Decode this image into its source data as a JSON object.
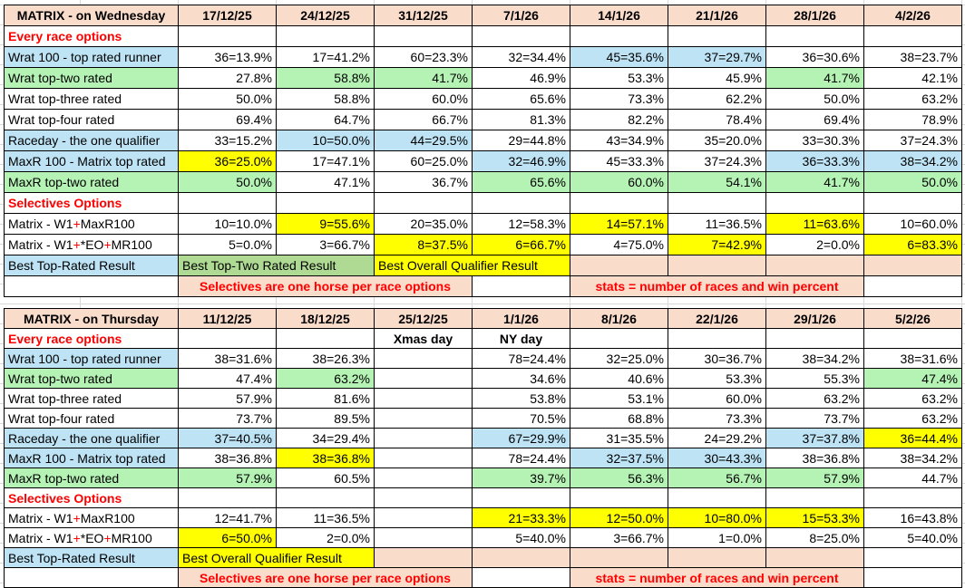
{
  "colors": {
    "peach": "#FADCCB",
    "blue": "#BDE3F5",
    "green": "#B5F3B5",
    "band_green": "#AEDA93",
    "yellow": "#FFFF00",
    "red": "#FF0000",
    "border": "#000000",
    "gridline": "#D9D9D9",
    "text": "#000000"
  },
  "tables": [
    {
      "id": "wednesday",
      "title": "MATRIX - on Wednesday",
      "dates": [
        "17/12/25",
        "24/12/25",
        "31/12/25",
        "7/1/26",
        "14/1/26",
        "21/1/26",
        "28/1/26",
        "4/2/26"
      ],
      "rows": [
        {
          "kind": "section",
          "label": "Every race options",
          "notes": [
            "",
            "",
            "",
            "",
            "",
            "",
            "",
            ""
          ]
        },
        {
          "kind": "data",
          "label": "Wrat 100 - top rated runner",
          "label_bg": "blue",
          "cells": [
            [
              "36=13.9%",
              ""
            ],
            [
              "17=41.2%",
              ""
            ],
            [
              "60=23.3%",
              ""
            ],
            [
              "32=34.4%",
              ""
            ],
            [
              "45=35.6%",
              "blue"
            ],
            [
              "37=29.7%",
              "blue"
            ],
            [
              "36=30.6%",
              ""
            ],
            [
              "38=23.7%",
              ""
            ]
          ]
        },
        {
          "kind": "data",
          "label": "Wrat top-two rated",
          "label_bg": "green",
          "cells": [
            [
              "27.8%",
              ""
            ],
            [
              "58.8%",
              "green"
            ],
            [
              "41.7%",
              "green"
            ],
            [
              "46.9%",
              ""
            ],
            [
              "53.3%",
              ""
            ],
            [
              "45.9%",
              ""
            ],
            [
              "41.7%",
              "green"
            ],
            [
              "42.1%",
              ""
            ]
          ]
        },
        {
          "kind": "data",
          "label": "Wrat top-three rated",
          "label_bg": "",
          "cells": [
            [
              "50.0%",
              ""
            ],
            [
              "58.8%",
              ""
            ],
            [
              "60.0%",
              ""
            ],
            [
              "65.6%",
              ""
            ],
            [
              "73.3%",
              ""
            ],
            [
              "62.2%",
              ""
            ],
            [
              "50.0%",
              ""
            ],
            [
              "63.2%",
              ""
            ]
          ]
        },
        {
          "kind": "data",
          "label": "Wrat top-four rated",
          "label_bg": "",
          "cells": [
            [
              "69.4%",
              ""
            ],
            [
              "64.7%",
              ""
            ],
            [
              "66.7%",
              ""
            ],
            [
              "81.3%",
              ""
            ],
            [
              "82.2%",
              ""
            ],
            [
              "78.4%",
              ""
            ],
            [
              "69.4%",
              ""
            ],
            [
              "78.9%",
              ""
            ]
          ]
        },
        {
          "kind": "data",
          "label": "Raceday - the one qualifier",
          "label_bg": "blue",
          "cells": [
            [
              "33=15.2%",
              ""
            ],
            [
              "10=50.0%",
              "blue"
            ],
            [
              "44=29.5%",
              "blue"
            ],
            [
              "29=44.8%",
              ""
            ],
            [
              "43=34.9%",
              ""
            ],
            [
              "35=20.0%",
              ""
            ],
            [
              "33=30.3%",
              ""
            ],
            [
              "37=24.3%",
              ""
            ]
          ]
        },
        {
          "kind": "data",
          "label": "MaxR 100 - Matrix top rated",
          "label_bg": "blue",
          "cells": [
            [
              "36=25.0%",
              "yellow"
            ],
            [
              "17=47.1%",
              ""
            ],
            [
              "60=25.0%",
              ""
            ],
            [
              "32=46.9%",
              "blue"
            ],
            [
              "45=33.3%",
              ""
            ],
            [
              "37=24.3%",
              ""
            ],
            [
              "36=33.3%",
              "blue"
            ],
            [
              "38=34.2%",
              "blue"
            ]
          ]
        },
        {
          "kind": "data",
          "label": "MaxR top-two rated",
          "label_bg": "green",
          "cells": [
            [
              "50.0%",
              "green"
            ],
            [
              "47.1%",
              ""
            ],
            [
              "36.7%",
              ""
            ],
            [
              "65.6%",
              "green"
            ],
            [
              "60.0%",
              "green"
            ],
            [
              "54.1%",
              "green"
            ],
            [
              "41.7%",
              "green"
            ],
            [
              "50.0%",
              "green"
            ]
          ]
        },
        {
          "kind": "section",
          "label": "Selectives Options",
          "notes": [
            "",
            "",
            "",
            "",
            "",
            "",
            "",
            ""
          ]
        },
        {
          "kind": "data",
          "label_parts": [
            [
              "Matrix - W1",
              ""
            ],
            [
              "+",
              "red"
            ],
            [
              "MaxR100",
              ""
            ]
          ],
          "label_bg": "",
          "cells": [
            [
              "10=10.0%",
              ""
            ],
            [
              "9=55.6%",
              "yellow"
            ],
            [
              "20=35.0%",
              ""
            ],
            [
              "12=58.3%",
              ""
            ],
            [
              "14=57.1%",
              "yellow"
            ],
            [
              "11=36.5%",
              ""
            ],
            [
              "11=63.6%",
              "yellow"
            ],
            [
              "10=60.0%",
              ""
            ]
          ]
        },
        {
          "kind": "data",
          "label_parts": [
            [
              "Matrix - W1",
              ""
            ],
            [
              "+",
              "red"
            ],
            [
              "*EO",
              ""
            ],
            [
              "+",
              "red"
            ],
            [
              "MR100",
              ""
            ]
          ],
          "label_bg": "",
          "cells": [
            [
              "5=0.0%",
              ""
            ],
            [
              "3=66.7%",
              ""
            ],
            [
              "8=37.5%",
              "yellow"
            ],
            [
              "6=66.7%",
              "yellow"
            ],
            [
              "4=75.0%",
              ""
            ],
            [
              "7=42.9%",
              "yellow"
            ],
            [
              "2=0.0%",
              ""
            ],
            [
              "6=83.3%",
              "yellow"
            ]
          ]
        },
        {
          "kind": "best",
          "label": "Best Top-Rated Result",
          "spans": [
            {
              "text": "Best Top-Two Rated Result",
              "bg": "band_green",
              "cols": 2
            },
            {
              "text": "Best Overall Qualifier Result",
              "bg": "yellow",
              "cols": 2
            },
            {
              "text": "",
              "bg": "peach",
              "cols": 1
            },
            {
              "text": "",
              "bg": "peach",
              "cols": 1
            },
            {
              "text": "",
              "bg": "peach",
              "cols": 1
            },
            {
              "text": "",
              "bg": "peach",
              "cols": 1
            }
          ]
        },
        {
          "kind": "footer",
          "bands": [
            {
              "text": "",
              "cols": 1,
              "bg": "none"
            },
            {
              "text": "Selectives are one horse per race options",
              "cols": 3,
              "bg": "peach"
            },
            {
              "text": "",
              "cols": 1,
              "bg": "gap"
            },
            {
              "text": "stats = number of races and win percent",
              "cols": 3,
              "bg": "peach"
            },
            {
              "text": "",
              "cols": 1,
              "bg": "none"
            }
          ]
        }
      ]
    },
    {
      "id": "thursday",
      "title": "MATRIX - on Thursday",
      "dates": [
        "11/12/25",
        "18/12/25",
        "25/12/25",
        "1/1/26",
        "8/1/26",
        "22/1/26",
        "29/1/26",
        "5/2/26"
      ],
      "rows": [
        {
          "kind": "section",
          "label": "Every race options",
          "notes": [
            "",
            "",
            "Xmas day",
            "NY day",
            "",
            "",
            "",
            ""
          ]
        },
        {
          "kind": "data",
          "label": "Wrat 100 - top rated runner",
          "label_bg": "blue",
          "cells": [
            [
              "38=31.6%",
              ""
            ],
            [
              "38=26.3%",
              ""
            ],
            [
              "",
              ""
            ],
            [
              "78=24.4%",
              ""
            ],
            [
              "32=25.0%",
              ""
            ],
            [
              "30=36.7%",
              ""
            ],
            [
              "38=34.2%",
              ""
            ],
            [
              "38=31.6%",
              ""
            ]
          ]
        },
        {
          "kind": "data",
          "label": "Wrat top-two rated",
          "label_bg": "green",
          "cells": [
            [
              "47.4%",
              ""
            ],
            [
              "63.2%",
              "green"
            ],
            [
              "",
              ""
            ],
            [
              "34.6%",
              ""
            ],
            [
              "40.6%",
              ""
            ],
            [
              "53.3%",
              ""
            ],
            [
              "55.3%",
              ""
            ],
            [
              "47.4%",
              "green"
            ]
          ]
        },
        {
          "kind": "data",
          "label": "Wrat top-three rated",
          "label_bg": "",
          "cells": [
            [
              "57.9%",
              ""
            ],
            [
              "81.6%",
              ""
            ],
            [
              "",
              ""
            ],
            [
              "53.8%",
              ""
            ],
            [
              "53.1%",
              ""
            ],
            [
              "60.0%",
              ""
            ],
            [
              "63.2%",
              ""
            ],
            [
              "63.2%",
              ""
            ]
          ]
        },
        {
          "kind": "data",
          "label": "Wrat top-four rated",
          "label_bg": "",
          "cells": [
            [
              "73.7%",
              ""
            ],
            [
              "89.5%",
              ""
            ],
            [
              "",
              ""
            ],
            [
              "70.5%",
              ""
            ],
            [
              "68.8%",
              ""
            ],
            [
              "73.3%",
              ""
            ],
            [
              "73.7%",
              ""
            ],
            [
              "63.2%",
              ""
            ]
          ]
        },
        {
          "kind": "data",
          "label": "Raceday - the one qualifier",
          "label_bg": "blue",
          "cells": [
            [
              "37=40.5%",
              "blue"
            ],
            [
              "34=29.4%",
              ""
            ],
            [
              "",
              ""
            ],
            [
              "67=29.9%",
              "blue"
            ],
            [
              "31=35.5%",
              ""
            ],
            [
              "24=29.2%",
              ""
            ],
            [
              "37=37.8%",
              "blue"
            ],
            [
              "36=44.4%",
              "yellow"
            ]
          ]
        },
        {
          "kind": "data",
          "label": "MaxR 100 - Matrix top rated",
          "label_bg": "blue",
          "cells": [
            [
              "38=36.8%",
              ""
            ],
            [
              "38=36.8%",
              "yellow"
            ],
            [
              "",
              ""
            ],
            [
              "78=24.4%",
              ""
            ],
            [
              "32=37.5%",
              "blue"
            ],
            [
              "30=43.3%",
              "blue"
            ],
            [
              "38=36.8%",
              ""
            ],
            [
              "38=34.2%",
              ""
            ]
          ]
        },
        {
          "kind": "data",
          "label": "MaxR top-two rated",
          "label_bg": "green",
          "cells": [
            [
              "57.9%",
              "green"
            ],
            [
              "60.5%",
              ""
            ],
            [
              "",
              ""
            ],
            [
              "39.7%",
              "green"
            ],
            [
              "56.3%",
              "green"
            ],
            [
              "56.7%",
              "green"
            ],
            [
              "57.9%",
              "green"
            ],
            [
              "44.7%",
              ""
            ]
          ]
        },
        {
          "kind": "section",
          "label": "Selectives Options",
          "notes": [
            "",
            "",
            "",
            "",
            "",
            "",
            "",
            ""
          ]
        },
        {
          "kind": "data",
          "label_parts": [
            [
              "Matrix - W1",
              ""
            ],
            [
              "+",
              "red"
            ],
            [
              "MaxR100",
              ""
            ]
          ],
          "label_bg": "",
          "cells": [
            [
              "12=41.7%",
              ""
            ],
            [
              "11=36.5%",
              ""
            ],
            [
              "",
              ""
            ],
            [
              "21=33.3%",
              "yellow"
            ],
            [
              "12=50.0%",
              "yellow"
            ],
            [
              "10=80.0%",
              "yellow"
            ],
            [
              "15=53.3%",
              "yellow"
            ],
            [
              "16=43.8%",
              ""
            ]
          ]
        },
        {
          "kind": "data",
          "label_parts": [
            [
              "Matrix - W1",
              ""
            ],
            [
              "+",
              "red"
            ],
            [
              "*EO",
              ""
            ],
            [
              "+",
              "red"
            ],
            [
              "MR100",
              ""
            ]
          ],
          "label_bg": "",
          "cells": [
            [
              "6=50.0%",
              "yellow"
            ],
            [
              "2=0.0%",
              ""
            ],
            [
              "",
              ""
            ],
            [
              "5=40.0%",
              ""
            ],
            [
              "3=66.7%",
              ""
            ],
            [
              "1=0.0%",
              ""
            ],
            [
              "8=25.0%",
              ""
            ],
            [
              "5=40.0%",
              ""
            ]
          ]
        },
        {
          "kind": "best",
          "label": "Best Top-Rated Result",
          "spans": [
            {
              "text": "Best Overall Qualifier Result",
              "bg": "yellow",
              "cols": 2
            },
            {
              "text": "",
              "bg": "peach",
              "cols": 1
            },
            {
              "text": "",
              "bg": "peach",
              "cols": 1
            },
            {
              "text": "",
              "bg": "peach",
              "cols": 1
            },
            {
              "text": "",
              "bg": "peach",
              "cols": 1
            },
            {
              "text": "",
              "bg": "peach",
              "cols": 1
            },
            {
              "text": "",
              "bg": "",
              "cols": 1
            }
          ]
        },
        {
          "kind": "footer",
          "bands": [
            {
              "text": "",
              "cols": 1,
              "bg": "none"
            },
            {
              "text": "Selectives are one horse per race options",
              "cols": 3,
              "bg": "peach"
            },
            {
              "text": "",
              "cols": 1,
              "bg": "gap"
            },
            {
              "text": "stats = number of races and win percent",
              "cols": 3,
              "bg": "peach"
            },
            {
              "text": "",
              "cols": 1,
              "bg": "none"
            }
          ]
        }
      ]
    }
  ],
  "layout_labels": {
    "sheet": "spreadsheet"
  }
}
